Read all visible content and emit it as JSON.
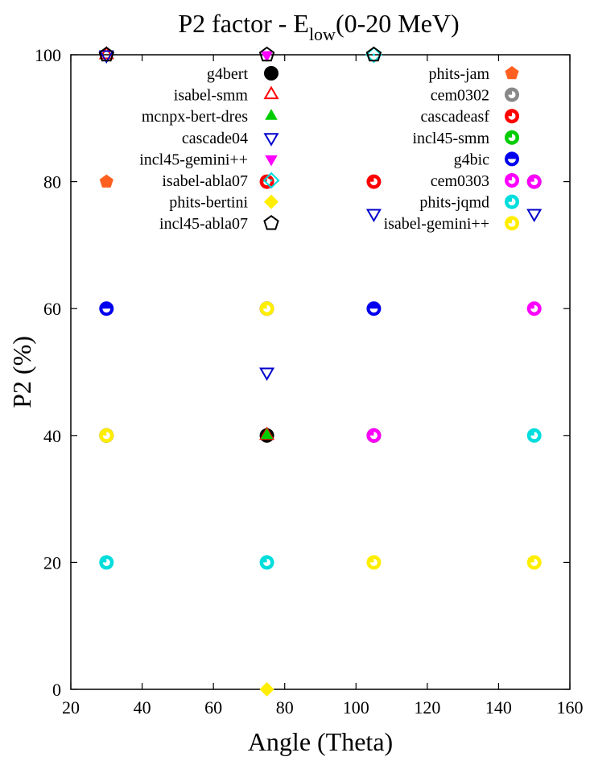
{
  "chart_data": {
    "type": "scatter",
    "title": "P2 factor - E",
    "title_subscript": "low",
    "title_suffix": "(0-20 MeV)",
    "xlabel": "Angle (Theta)",
    "ylabel": "P2 (%)",
    "xlim": [
      20,
      160
    ],
    "ylim": [
      0,
      100
    ],
    "xticks": [
      20,
      40,
      60,
      80,
      100,
      120,
      140,
      160
    ],
    "yticks": [
      0,
      20,
      40,
      60,
      80,
      100
    ],
    "grid": false,
    "legend_position": "top",
    "series": [
      {
        "name": "g4bert",
        "marker": "circle",
        "color": "#000000",
        "points": [
          [
            30,
            40
          ],
          [
            75,
            40
          ],
          [
            105,
            40
          ]
        ]
      },
      {
        "name": "isabel-smm",
        "marker": "triangle-open",
        "color": "#ff0000",
        "points": [
          [
            30,
            100
          ],
          [
            75,
            40
          ]
        ]
      },
      {
        "name": "mcnpx-bert-dres",
        "marker": "triangle",
        "color": "#00cc00",
        "points": [
          [
            75,
            40
          ]
        ]
      },
      {
        "name": "cascade04",
        "marker": "triangle-down-open",
        "color": "#0000cc",
        "points": [
          [
            30,
            100
          ],
          [
            75,
            50
          ],
          [
            105,
            75
          ],
          [
            150,
            75
          ]
        ]
      },
      {
        "name": "incl45-gemini++",
        "marker": "triangle-down",
        "color": "#ff00ff",
        "points": [
          [
            30,
            60
          ],
          [
            75,
            100
          ],
          [
            105,
            60
          ]
        ]
      },
      {
        "name": "isabel-abla07",
        "marker": "diamond-open",
        "color": "#00dddd",
        "points": [
          [
            105,
            100
          ]
        ]
      },
      {
        "name": "phits-bertini",
        "marker": "diamond",
        "color": "#ffee00",
        "points": [
          [
            75,
            0
          ]
        ]
      },
      {
        "name": "incl45-abla07",
        "marker": "pentagon-open",
        "color": "#000000",
        "points": [
          [
            30,
            100
          ],
          [
            75,
            100
          ],
          [
            105,
            100
          ]
        ]
      },
      {
        "name": "phits-jam",
        "marker": "pentagon",
        "color": "#ff6020",
        "points": [
          [
            30,
            80
          ]
        ]
      },
      {
        "name": "cem0302",
        "marker": "circle-ring",
        "color": "#888888",
        "points": [
          [
            150,
            80
          ]
        ]
      },
      {
        "name": "cascadeasf",
        "marker": "circle-ring",
        "color": "#ff0000",
        "points": [
          [
            75,
            80
          ],
          [
            105,
            80
          ]
        ]
      },
      {
        "name": "incl45-smm",
        "marker": "circle-ring",
        "color": "#00cc00",
        "points": [
          [
            150,
            80
          ]
        ]
      },
      {
        "name": "g4bic",
        "marker": "circle-half",
        "color": "#0000ee",
        "points": [
          [
            30,
            60
          ],
          [
            75,
            60
          ],
          [
            105,
            60
          ]
        ]
      },
      {
        "name": "cem0303",
        "marker": "circle-ring",
        "color": "#ff00ff",
        "points": [
          [
            105,
            40
          ],
          [
            150,
            60
          ],
          [
            150,
            80
          ]
        ]
      },
      {
        "name": "phits-jqmd",
        "marker": "circle-ring",
        "color": "#00dddd",
        "points": [
          [
            30,
            20
          ],
          [
            75,
            20
          ],
          [
            150,
            40
          ]
        ]
      },
      {
        "name": "isabel-gemini++",
        "marker": "circle-ring",
        "color": "#ffee00",
        "points": [
          [
            30,
            40
          ],
          [
            75,
            60
          ],
          [
            105,
            20
          ],
          [
            150,
            20
          ]
        ]
      }
    ]
  }
}
